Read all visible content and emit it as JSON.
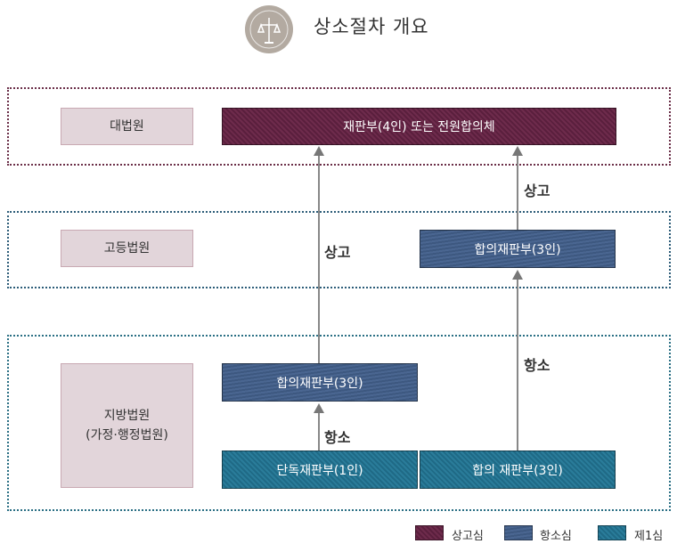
{
  "header": {
    "title": "상소절차 개요",
    "logo_icon": "court-emblem-icon"
  },
  "courts": {
    "supreme": {
      "label": "대법원"
    },
    "high": {
      "label": "고등법원"
    },
    "district": {
      "label_line1": "지방법원",
      "label_line2": "(가정·행정법원)"
    }
  },
  "panels": {
    "supreme_panel": "재판부(4인) 또는 전원합의체",
    "high_panel": "합의재판부(3인)",
    "district_appeal_panel": "합의재판부(3인)",
    "single_judge": "단독재판부(1인)",
    "collegiate_first": "합의 재판부(3인)"
  },
  "connectors": {
    "left_to_supreme": "상고",
    "high_to_supreme": "상고",
    "single_to_appeal": "항소",
    "collegiate_to_high": "항소"
  },
  "legend": [
    {
      "label": "상고심",
      "color": "#6e2b4c"
    },
    {
      "label": "항소심",
      "color": "#4a6691"
    },
    {
      "label": "제1심",
      "color": "#2a7c9a"
    }
  ],
  "colors": {
    "supreme_frame": "#6b2f48",
    "high_frame": "#2c5c78",
    "district_frame": "#2a6f84"
  }
}
